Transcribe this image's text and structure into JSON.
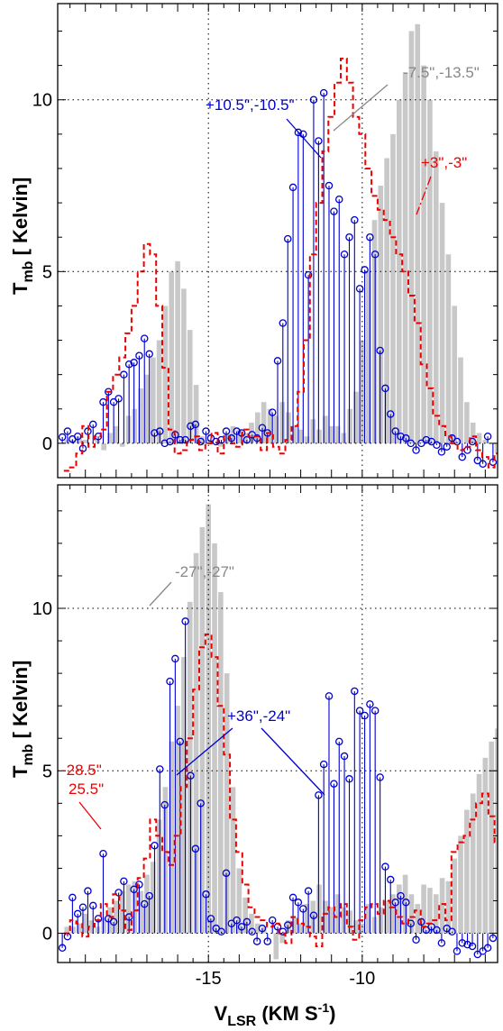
{
  "chart_data": {
    "type": "bar",
    "xlabel": "V",
    "xlabel_sub": "LSR",
    "xlabel_units": "(KM S",
    "xlabel_units_sup": "-1",
    "xlabel_units_end": ")",
    "xlim": [
      -19.9,
      -5.6
    ],
    "x_ticks": [
      -15,
      -10
    ],
    "grid": true,
    "colors": {
      "gray": "#c8c8c8",
      "blue": "#0000d0",
      "red": "#ee0000"
    },
    "panels": [
      {
        "ylabel": "T",
        "ylabel_sub": "mb",
        "ylabel_units": " [ Kelvin]",
        "ylim": [
          -1.0,
          12.8
        ],
        "y_ticks": [
          0,
          5,
          10
        ],
        "gray_series": {
          "name": "-7.5\",-13.5\"",
          "x0": -19.6,
          "dx": 0.2,
          "values": [
            0.1,
            0.1,
            0.2,
            0.1,
            0.0,
            0.1,
            -0.2,
            0.3,
            0.5,
            -0.1,
            0.8,
            1.0,
            1.6,
            2.0,
            2.5,
            3.0,
            4.0,
            5.0,
            5.3,
            4.5,
            3.3,
            1.7,
            0.2,
            0.1,
            0.0,
            -0.1,
            0.3,
            0.5,
            0.4,
            0.3,
            0.6,
            0.9,
            1.2,
            1.0,
            0.8,
            1.2,
            0.9,
            0.5,
            0.4,
            0.2,
            0.7,
            0.4,
            0.8,
            0.5,
            0.5,
            0.3,
            1.0,
            1.5,
            3.0,
            5.0,
            6.5,
            7.5,
            8.3,
            9.0,
            10.0,
            10.8,
            12.0,
            12.2,
            11.0,
            10.0,
            8.5,
            7.0,
            5.5,
            4.0,
            2.5,
            1.2,
            0.6,
            0.3,
            0.1,
            0.0,
            -0.3,
            -0.5,
            -0.1,
            0.1,
            -0.2,
            -0.3,
            -0.5,
            -0.2,
            0.3
          ]
        },
        "red_series": {
          "name": "+3\",-3\"",
          "x0": -19.6,
          "dx": 0.2,
          "values": [
            -0.8,
            -0.7,
            -0.3,
            0.5,
            -0.1,
            0.2,
            0.4,
            1.5,
            2.0,
            2.5,
            3.2,
            4.0,
            5.0,
            5.8,
            5.5,
            4.0,
            2.2,
            0.4,
            -0.3,
            -0.2,
            0.1,
            0.2,
            -0.2,
            0.0,
            0.3,
            -0.3,
            0.2,
            0.0,
            -0.1,
            0.4,
            0.2,
            0.2,
            -0.2,
            0.3,
            -0.1,
            -0.3,
            0.1,
            0.5,
            1.5,
            3.0,
            5.5,
            7.0,
            8.5,
            9.5,
            10.5,
            11.2,
            10.5,
            9.5,
            9.0,
            8.0,
            7.2,
            6.8,
            6.5,
            6.0,
            5.5,
            5.0,
            4.3,
            3.5,
            2.3,
            1.6,
            0.8,
            0.5,
            0.2,
            0.0,
            -0.2,
            -0.1,
            0.2,
            -0.2,
            -0.4,
            -0.7,
            -0.3,
            -0.1,
            -0.2,
            -0.5,
            0.0,
            0.2,
            0.1,
            -0.4,
            -0.6
          ]
        },
        "blue_series": {
          "name": "+10.5\",-10.5\"",
          "points": [
            [
              -19.75,
              0.18
            ],
            [
              -19.58,
              0.35
            ],
            [
              -19.42,
              0.12
            ],
            [
              -19.25,
              0.2
            ],
            [
              -19.08,
              -0.15
            ],
            [
              -18.92,
              0.35
            ],
            [
              -18.75,
              0.55
            ],
            [
              -18.58,
              0.2
            ],
            [
              -18.42,
              1.2
            ],
            [
              -18.25,
              1.5
            ],
            [
              -18.08,
              1.2
            ],
            [
              -17.92,
              1.3
            ],
            [
              -17.75,
              2.0
            ],
            [
              -17.58,
              2.3
            ],
            [
              -17.42,
              2.35
            ],
            [
              -17.25,
              2.55
            ],
            [
              -17.08,
              3.05
            ],
            [
              -16.92,
              2.6
            ],
            [
              -16.75,
              0.3
            ],
            [
              -16.58,
              0.35
            ],
            [
              -16.42,
              0.0
            ],
            [
              -16.25,
              0.05
            ],
            [
              -16.08,
              0.25
            ],
            [
              -15.92,
              0.1
            ],
            [
              -15.75,
              0.1
            ],
            [
              -15.58,
              0.5
            ],
            [
              -15.42,
              0.55
            ],
            [
              -15.25,
              0.05
            ],
            [
              -15.08,
              0.35
            ],
            [
              -14.92,
              0.15
            ],
            [
              -14.75,
              0.05
            ],
            [
              -14.58,
              0.1
            ],
            [
              -14.42,
              0.35
            ],
            [
              -14.25,
              0.15
            ],
            [
              -14.08,
              0.35
            ],
            [
              -13.92,
              0.3
            ],
            [
              -13.75,
              0.1
            ],
            [
              -13.58,
              0.25
            ],
            [
              -13.42,
              0.15
            ],
            [
              -13.25,
              0.45
            ],
            [
              -13.08,
              0.3
            ],
            [
              -12.92,
              0.9
            ],
            [
              -12.75,
              2.4
            ],
            [
              -12.58,
              3.5
            ],
            [
              -12.42,
              5.95
            ],
            [
              -12.25,
              7.45
            ],
            [
              -12.08,
              9.05
            ],
            [
              -11.92,
              9.0
            ],
            [
              -11.75,
              4.9
            ],
            [
              -11.58,
              10.0
            ],
            [
              -11.42,
              8.8
            ],
            [
              -11.25,
              10.2
            ],
            [
              -11.08,
              7.5
            ],
            [
              -10.92,
              6.75
            ],
            [
              -10.75,
              7.1
            ],
            [
              -10.58,
              5.5
            ],
            [
              -10.42,
              6.0
            ],
            [
              -10.25,
              6.5
            ],
            [
              -10.08,
              4.5
            ],
            [
              -9.92,
              5.05
            ],
            [
              -9.75,
              6.0
            ],
            [
              -9.58,
              5.5
            ],
            [
              -9.42,
              2.7
            ],
            [
              -9.25,
              1.6
            ],
            [
              -9.08,
              0.85
            ],
            [
              -8.92,
              0.35
            ],
            [
              -8.75,
              0.2
            ],
            [
              -8.58,
              0.15
            ],
            [
              -8.42,
              0.0
            ],
            [
              -8.25,
              -0.2
            ],
            [
              -8.08,
              0.0
            ],
            [
              -7.92,
              0.1
            ],
            [
              -7.75,
              0.05
            ],
            [
              -7.58,
              -0.05
            ],
            [
              -7.42,
              -0.25
            ],
            [
              -7.25,
              -0.1
            ],
            [
              -7.08,
              0.15
            ],
            [
              -6.92,
              0.05
            ],
            [
              -6.75,
              -0.4
            ],
            [
              -6.58,
              -0.2
            ],
            [
              -6.42,
              0.05
            ],
            [
              -6.25,
              -0.5
            ],
            [
              -6.08,
              -0.6
            ],
            [
              -5.92,
              0.2
            ],
            [
              -5.75,
              -0.55
            ]
          ]
        },
        "annotations": [
          {
            "text": "-7.5\",-13.5\"",
            "color": "#888888"
          },
          {
            "text": "+10.5\",-10.5\"",
            "color": "#0000d0"
          },
          {
            "text": "+3\",-3\"",
            "color": "#ee0000"
          }
        ]
      },
      {
        "ylabel": "T",
        "ylabel_sub": "mb",
        "ylabel_units": " [ Kelvin]",
        "ylim": [
          -0.9,
          13.8
        ],
        "y_ticks": [
          0,
          5,
          10
        ],
        "gray_series": {
          "name": "-27\",-27\"",
          "x0": -19.6,
          "dx": 0.2,
          "values": [
            0.2,
            0.2,
            0.3,
            0.6,
            0.4,
            0.2,
            0.5,
            0.8,
            1.0,
            1.3,
            1.5,
            1.6,
            1.3,
            1.8,
            2.2,
            3.5,
            4.5,
            5.9,
            7.0,
            8.5,
            10.2,
            11.7,
            12.5,
            13.2,
            12.0,
            10.5,
            8.0,
            4.5,
            2.0,
            1.1,
            0.6,
            0.3,
            0.2,
            0.0,
            -0.8,
            -0.3,
            0.4,
            0.5,
            0.3,
            0.9,
            1.0,
            1.5,
            1.0,
            0.8,
            1.2,
            0.8,
            0.7,
            0.4,
            0.3,
            0.9,
            0.5,
            0.8,
            1.0,
            1.2,
            1.5,
            1.8,
            1.2,
            0.9,
            1.5,
            1.4,
            1.2,
            1.7,
            1.6,
            2.3,
            3.0,
            3.8,
            4.3,
            4.9,
            5.4,
            5.9,
            6.3,
            6.6,
            7.0,
            7.1,
            6.8,
            6.0,
            4.9,
            3.6,
            2.4,
            1.4,
            0.9,
            1.5,
            1.8,
            1.0,
            1.9,
            1.2,
            0.9,
            0.6,
            0.3,
            0.0,
            -0.4
          ]
        },
        "red_series": {
          "name": "-28.5\" 25.5\"",
          "x0": -19.6,
          "dx": 0.2,
          "values": [
            0.0,
            0.4,
            0.3,
            -0.1,
            0.2,
            0.4,
            0.9,
            0.5,
            1.2,
            0.7,
            0.1,
            0.7,
            1.7,
            2.3,
            3.5,
            3.0,
            2.5,
            2.1,
            3.0,
            4.5,
            6.0,
            7.5,
            8.8,
            9.2,
            8.5,
            7.0,
            5.5,
            3.5,
            2.5,
            1.5,
            0.8,
            0.5,
            0.4,
            0.2,
            0.3,
            0.0,
            -0.3,
            0.5,
            0.3,
            0.2,
            -0.1,
            -0.4,
            0.6,
            0.8,
            0.5,
            0.9,
            0.2,
            -0.2,
            0.4,
            0.8,
            0.9,
            0.6,
            1.0,
            0.8,
            0.5,
            0.3,
            0.5,
            0.7,
            0.2,
            0.3,
            0.4,
            0.9,
            0.4,
            2.5,
            2.8,
            3.0,
            3.5,
            4.0,
            4.3,
            3.6,
            2.8,
            2.2,
            1.6,
            3.4,
            4.5,
            5.0,
            6.0,
            7.1,
            7.5,
            7.8,
            7.4,
            4.5,
            2.5,
            1.3,
            0.4,
            0.7,
            1.5,
            1.1,
            0.1,
            -0.2,
            0.4
          ]
        },
        "blue_series": {
          "name": "+36\",-24\"",
          "points": [
            [
              -19.75,
              -0.45
            ],
            [
              -19.58,
              -0.1
            ],
            [
              -19.42,
              1.1
            ],
            [
              -19.25,
              0.6
            ],
            [
              -19.08,
              0.8
            ],
            [
              -18.92,
              1.3
            ],
            [
              -18.75,
              0.85
            ],
            [
              -18.58,
              0.45
            ],
            [
              -18.42,
              2.45
            ],
            [
              -18.25,
              0.45
            ],
            [
              -18.08,
              0.35
            ],
            [
              -17.92,
              1.25
            ],
            [
              -17.75,
              1.6
            ],
            [
              -17.58,
              0.5
            ],
            [
              -17.42,
              1.35
            ],
            [
              -17.25,
              1.5
            ],
            [
              -17.08,
              0.9
            ],
            [
              -16.92,
              1.15
            ],
            [
              -16.75,
              2.7
            ],
            [
              -16.58,
              5.05
            ],
            [
              -16.42,
              3.95
            ],
            [
              -16.25,
              7.75
            ],
            [
              -16.08,
              8.45
            ],
            [
              -15.92,
              5.9
            ],
            [
              -15.75,
              9.6
            ],
            [
              -15.58,
              4.85
            ],
            [
              -15.42,
              2.6
            ],
            [
              -15.25,
              4.0
            ],
            [
              -15.08,
              1.2
            ],
            [
              -14.92,
              0.45
            ],
            [
              -14.75,
              0.15
            ],
            [
              -14.58,
              0.05
            ],
            [
              -14.42,
              1.85
            ],
            [
              -14.25,
              0.3
            ],
            [
              -14.08,
              0.4
            ],
            [
              -13.92,
              0.2
            ],
            [
              -13.75,
              0.35
            ],
            [
              -13.58,
              0.05
            ],
            [
              -13.42,
              -0.25
            ],
            [
              -13.25,
              0.15
            ],
            [
              -13.08,
              -0.25
            ],
            [
              -12.92,
              0.4
            ],
            [
              -12.75,
              0.2
            ],
            [
              -12.58,
              0.05
            ],
            [
              -12.42,
              0.25
            ],
            [
              -12.25,
              1.1
            ],
            [
              -12.08,
              0.95
            ],
            [
              -11.92,
              0.75
            ],
            [
              -11.75,
              1.3
            ],
            [
              -11.58,
              0.55
            ],
            [
              -11.42,
              4.25
            ],
            [
              -11.25,
              5.2
            ],
            [
              -11.08,
              7.3
            ],
            [
              -10.92,
              4.6
            ],
            [
              -10.75,
              5.9
            ],
            [
              -10.58,
              5.45
            ],
            [
              -10.42,
              4.75
            ],
            [
              -10.25,
              7.45
            ],
            [
              -10.08,
              6.85
            ],
            [
              -9.92,
              6.7
            ],
            [
              -9.75,
              7.05
            ],
            [
              -9.58,
              6.85
            ],
            [
              -9.42,
              4.8
            ],
            [
              -9.25,
              2.05
            ],
            [
              -9.08,
              1.65
            ],
            [
              -8.92,
              0.95
            ],
            [
              -8.75,
              1.15
            ],
            [
              -8.58,
              0.95
            ],
            [
              -8.42,
              0.3
            ],
            [
              -8.25,
              -0.2
            ],
            [
              -8.08,
              0.35
            ],
            [
              -7.92,
              0.1
            ],
            [
              -7.75,
              0.2
            ],
            [
              -7.58,
              0.1
            ],
            [
              -7.42,
              -0.3
            ],
            [
              -7.25,
              0.15
            ],
            [
              -7.08,
              0.05
            ],
            [
              -6.92,
              -0.55
            ],
            [
              -6.75,
              -0.3
            ],
            [
              -6.58,
              -0.35
            ],
            [
              -6.42,
              -0.4
            ],
            [
              -6.25,
              -0.65
            ],
            [
              -6.08,
              -0.55
            ],
            [
              -5.92,
              -0.45
            ],
            [
              -5.75,
              -0.15
            ]
          ]
        },
        "annotations": [
          {
            "text": "-27\",-27\"",
            "color": "#888888"
          },
          {
            "text": "+36\",-24\"",
            "color": "#0000d0"
          },
          {
            "text": "-28.5\"",
            "color": "#ee0000"
          },
          {
            "text": "25.5\"",
            "color": "#ee0000"
          }
        ]
      }
    ]
  }
}
